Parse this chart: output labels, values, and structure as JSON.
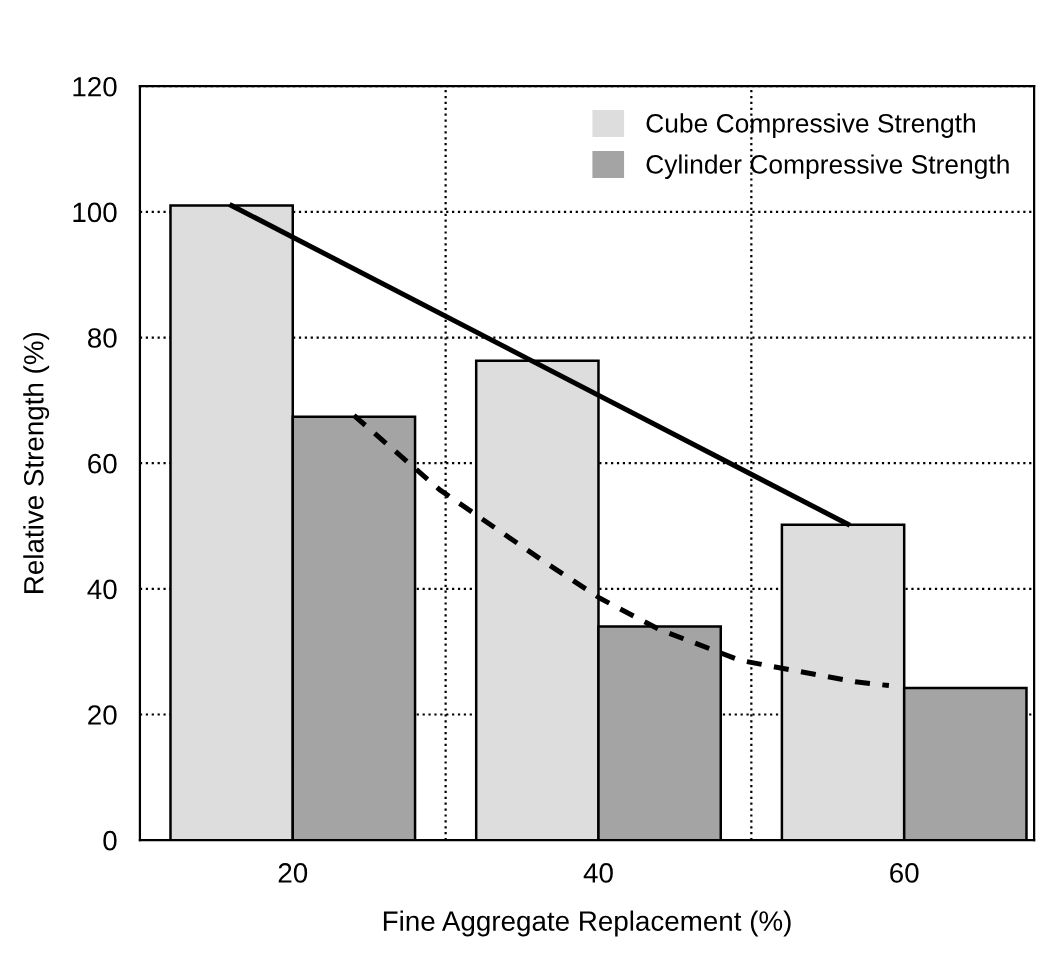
{
  "chart_data": {
    "type": "bar",
    "xlabel": "Fine Aggregate Replacement (%)",
    "ylabel": "Relative Strength (%)",
    "xlim": [
      10,
      68.5
    ],
    "xticks": [
      20,
      40,
      60
    ],
    "ylim": [
      0,
      120
    ],
    "yticks": [
      0,
      20,
      40,
      60,
      80,
      100,
      120
    ],
    "grid": "y",
    "legend": "top right",
    "series": [
      {
        "name": "Cube Compressive Strength",
        "color": "#dcdddc",
        "x": [
          16,
          36,
          56
        ],
        "values": [
          101,
          76.3,
          50.2
        ]
      },
      {
        "name": "Cylinder Compressive Strength",
        "color": "#a4a4a4",
        "x": [
          24,
          44,
          64
        ],
        "values": [
          67.4,
          34,
          24.2
        ]
      },
      {
        "type": "line",
        "color": "#000000",
        "line_style": "solid",
        "x": [
          16,
          56.3
        ],
        "values": [
          101,
          50.3
        ]
      },
      {
        "type": "line",
        "color": "#000000",
        "line_style": "dashed",
        "x": [
          24,
          29.6,
          36.4,
          40.1,
          44,
          49.3,
          56.8,
          59
        ],
        "values": [
          67.6,
          55.8,
          44.4,
          38.5,
          33.5,
          28.6,
          25.2,
          24.6
        ]
      }
    ],
    "ref_lines": [
      {
        "axis": "x",
        "value": 30,
        "color": "#000000",
        "line_style": "dotted"
      },
      {
        "axis": "x",
        "value": 50,
        "color": "#000000",
        "line_style": "dotted"
      }
    ]
  }
}
